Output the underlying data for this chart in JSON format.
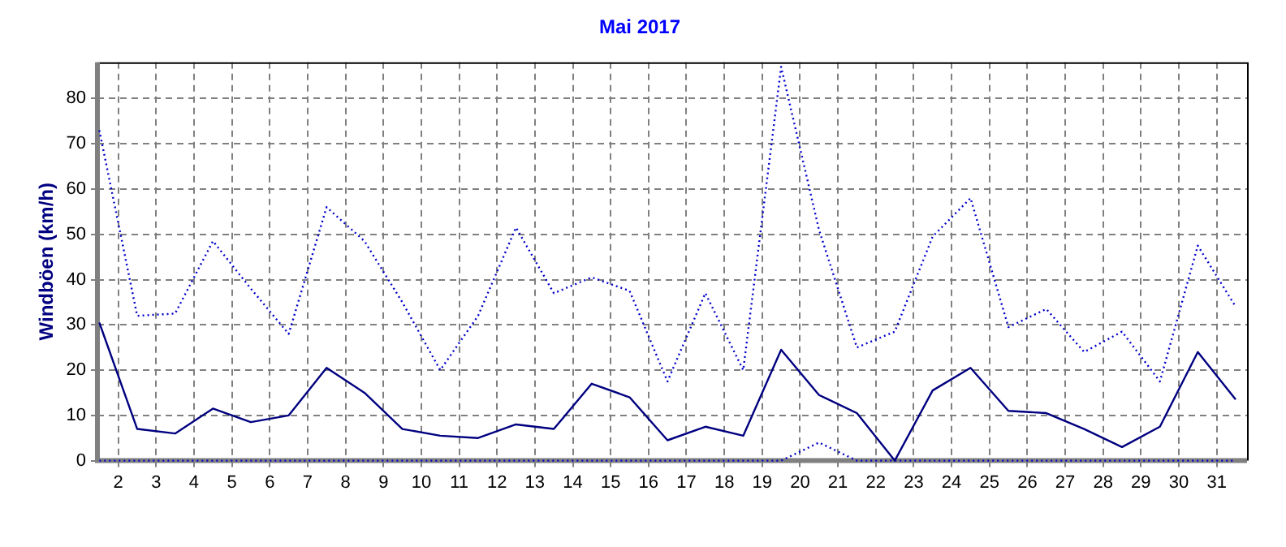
{
  "chart_data": {
    "type": "line",
    "title": "Mai 2017",
    "ylabel": "Windböen (km/h)",
    "x": [
      1.5,
      2.5,
      3.5,
      4.5,
      5.5,
      6.5,
      7.5,
      8.5,
      9.5,
      10.5,
      11.5,
      12.5,
      13.5,
      14.5,
      15.5,
      16.5,
      17.5,
      18.5,
      19.5,
      20.5,
      21.5,
      22.5,
      23.5,
      24.5,
      25.5,
      26.5,
      27.5,
      28.5,
      29.5,
      30.5,
      31.5
    ],
    "xlim": [
      1.45,
      31.8
    ],
    "xticks": [
      2,
      3,
      4,
      5,
      6,
      7,
      8,
      9,
      10,
      11,
      12,
      13,
      14,
      15,
      16,
      17,
      18,
      19,
      20,
      21,
      22,
      23,
      24,
      25,
      26,
      27,
      28,
      29,
      30,
      31
    ],
    "ylim": [
      0,
      88
    ],
    "yticks": [
      0,
      10,
      20,
      30,
      40,
      50,
      60,
      70,
      80
    ],
    "grid": true,
    "marker": "none",
    "series": [
      {
        "color": "#0000cc",
        "line_style": "dotted",
        "values": [
          73,
          32,
          32.5,
          48.5,
          38,
          28,
          56,
          48.5,
          35,
          20,
          32,
          51.5,
          37,
          40.5,
          37.5,
          17.5,
          37,
          20,
          87,
          51,
          25,
          28.5,
          49.5,
          58,
          29.5,
          33.5,
          24,
          28.5,
          17.5,
          47.5,
          34
        ]
      },
      {
        "color": "#000080",
        "line_style": "solid",
        "values": [
          30.5,
          7,
          6,
          11.5,
          8.5,
          10,
          20.5,
          15,
          7,
          5.5,
          5,
          8,
          7,
          17,
          14,
          4.5,
          7.5,
          5.5,
          24.5,
          14.5,
          10.5,
          0,
          15.5,
          20.5,
          11,
          10.5,
          7,
          3,
          7.5,
          24,
          13.5
        ]
      },
      {
        "color": "#0000cc",
        "line_style": "dotted",
        "values": [
          0,
          0,
          0,
          0,
          0,
          0,
          0,
          0,
          0,
          0,
          0,
          0,
          0,
          0,
          0,
          0,
          0,
          0,
          0,
          4,
          0,
          0,
          0,
          0,
          0,
          0,
          0,
          0,
          0,
          0,
          0
        ]
      }
    ]
  }
}
